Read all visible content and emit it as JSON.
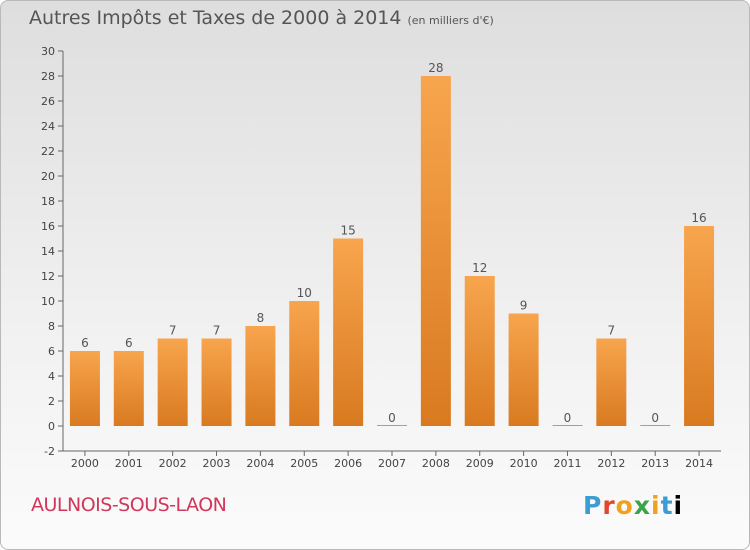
{
  "header": {
    "title": "Autres Impôts et Taxes de 2000 à 2014",
    "unit": "(en milliers d'€)"
  },
  "footer": {
    "commune": "AULNOIS-SOUS-LAON",
    "logo": "Proxiti"
  },
  "colors": {
    "bar_light": "#f7a54e",
    "bar_dark": "#d97a20",
    "commune_text": "#d2365a"
  },
  "chart_data": {
    "type": "bar",
    "title": "Autres Impôts et Taxes de 2000 à 2014",
    "subtitle": "(en milliers d'€)",
    "categories": [
      "2000",
      "2001",
      "2002",
      "2003",
      "2004",
      "2005",
      "2006",
      "2007",
      "2008",
      "2009",
      "2010",
      "2011",
      "2012",
      "2013",
      "2014"
    ],
    "values": [
      6,
      6,
      7,
      7,
      8,
      10,
      15,
      0,
      28,
      12,
      9,
      0,
      7,
      0,
      16
    ],
    "ylim": [
      -2,
      30
    ],
    "yticks": [
      -2,
      0,
      2,
      4,
      6,
      8,
      10,
      12,
      14,
      16,
      18,
      20,
      22,
      24,
      26,
      28,
      30
    ],
    "grid": false,
    "legend": "none"
  }
}
